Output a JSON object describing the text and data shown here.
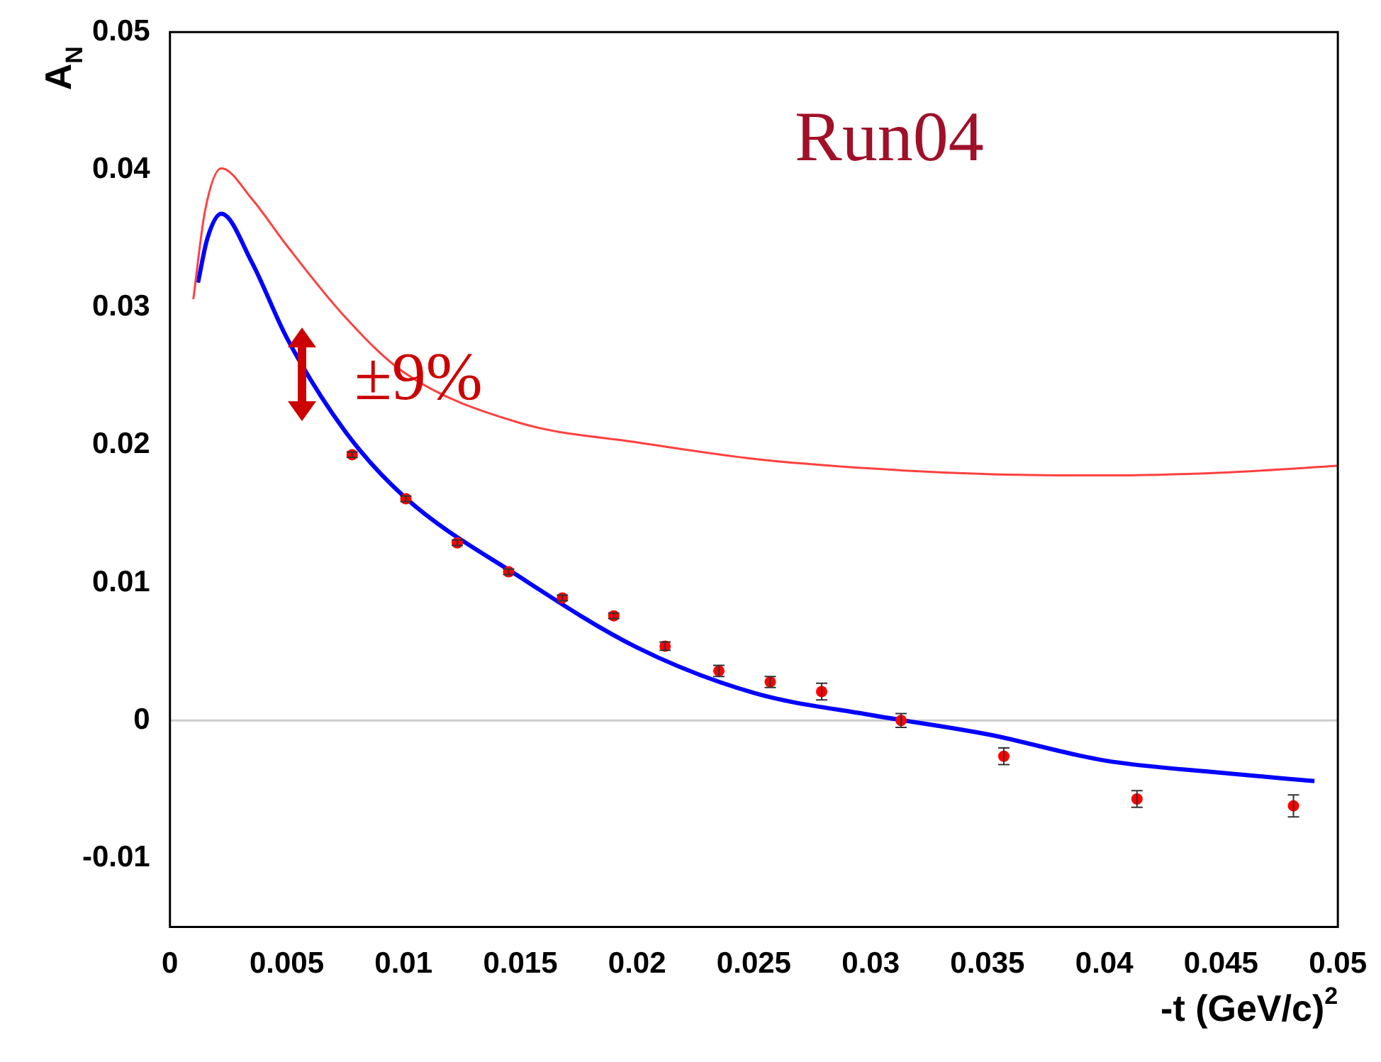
{
  "chart_data": {
    "type": "scatter",
    "xlabel": "-t (GeV/c)$^{2}$",
    "ylabel": "A$_{N}$",
    "xlim": [
      0,
      0.05
    ],
    "xticks": [
      0,
      0.005,
      0.01,
      0.015,
      0.02,
      0.025,
      0.03,
      0.035,
      0.04,
      0.045,
      0.05
    ],
    "ylim": [
      -0.015,
      0.05
    ],
    "yticks": [
      -0.01,
      0,
      0.01,
      0.02,
      0.03,
      0.04,
      0.05
    ],
    "grid": false,
    "legend": false,
    "ref_lines": [
      {
        "axis": "y",
        "value": 0,
        "color": "#cccccc"
      }
    ],
    "annotations": [
      "Run04",
      "±9%"
    ],
    "series": [
      {
        "type": "line",
        "color": "#ff4040",
        "marker": "none",
        "x": [
          0.001,
          0.0015,
          0.0022,
          0.0035,
          0.005,
          0.0075,
          0.01,
          0.015,
          0.02,
          0.025,
          0.03,
          0.035,
          0.04,
          0.045,
          0.05
        ],
        "values": [
          0.0306,
          0.037,
          0.0401,
          0.0379,
          0.0345,
          0.0293,
          0.0253,
          0.0216,
          0.0202,
          0.019,
          0.0183,
          0.0179,
          0.0178,
          0.018,
          0.0185
        ]
      },
      {
        "type": "line",
        "color": "#0000ff",
        "marker": "none",
        "x": [
          0.0012,
          0.0016,
          0.0022,
          0.0035,
          0.005,
          0.0075,
          0.01,
          0.015,
          0.02,
          0.025,
          0.03,
          0.035,
          0.04,
          0.045,
          0.049
        ],
        "values": [
          0.0318,
          0.035,
          0.0368,
          0.0333,
          0.0278,
          0.021,
          0.0163,
          0.0104,
          0.0053,
          0.002,
          0.0004,
          -0.001,
          -0.0029,
          -0.0038,
          -0.0044
        ]
      },
      {
        "color": "#ff0000",
        "marker": "circle",
        "x": [
          0.0078,
          0.0101,
          0.0123,
          0.0145,
          0.0168,
          0.019,
          0.0212,
          0.0235,
          0.0257,
          0.0279,
          0.0313,
          0.0357,
          0.0414,
          0.0481
        ],
        "values": [
          0.0193,
          0.0161,
          0.0129,
          0.0108,
          0.0089,
          0.0076,
          0.0054,
          0.0036,
          0.0028,
          0.0021,
          0.0,
          -0.0026,
          -0.0057,
          -0.0062
        ],
        "errors": [
          0.0002,
          0.0002,
          0.0002,
          0.0002,
          0.0002,
          0.0002,
          0.0003,
          0.0004,
          0.0004,
          0.0006,
          0.0005,
          0.0006,
          0.0006,
          0.0008
        ]
      }
    ]
  }
}
